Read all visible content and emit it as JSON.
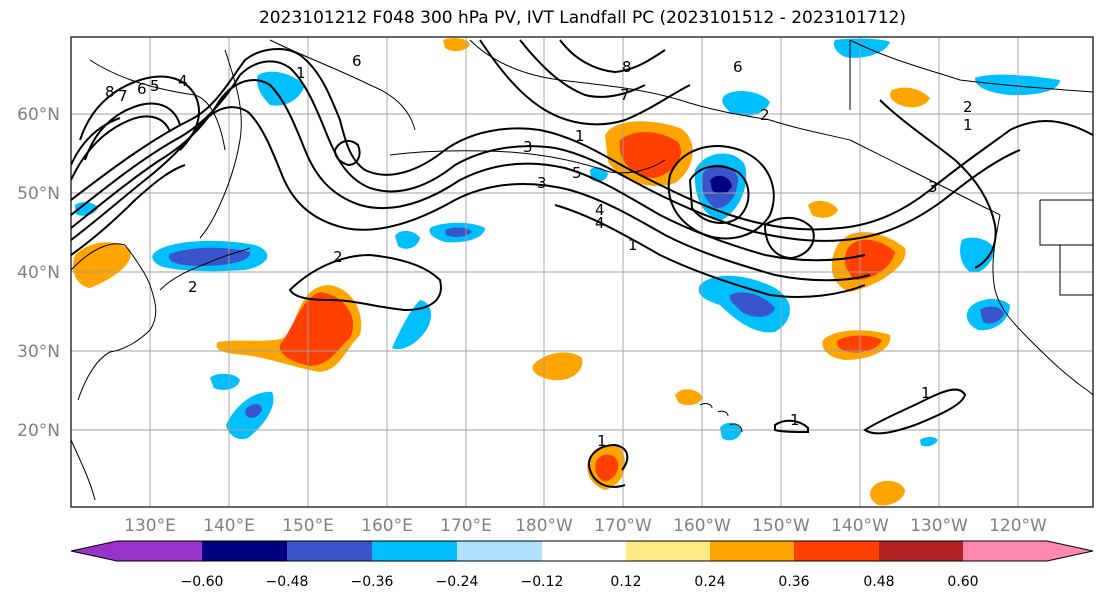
{
  "title": "2023101212 F048 300 hPa PV, IVT Landfall PC (2023101512 - 2023101712)",
  "map": {
    "lat_labels": [
      "60°N",
      "50°N",
      "40°N",
      "30°N",
      "20°N"
    ],
    "lon_labels": [
      "130°E",
      "140°E",
      "150°E",
      "160°E",
      "170°E",
      "180°W",
      "170°W",
      "160°W",
      "150°W",
      "140°W",
      "130°W",
      "120°W"
    ],
    "contour_labels": [
      "8",
      "7",
      "6",
      "5",
      "4",
      "1",
      "6",
      "8",
      "6",
      "7",
      "3",
      "4",
      "5",
      "1",
      "3",
      "4",
      "2",
      "1",
      "2",
      "2",
      "1",
      "1",
      "1",
      "1",
      "3",
      "2"
    ]
  },
  "colorbar": {
    "colors": [
      "#9933cc",
      "#000080",
      "#3a55cc",
      "#00bfff",
      "#b0e2ff",
      "#ffffff",
      "#ffea85",
      "#ffa500",
      "#ff4000",
      "#b22222",
      "#ff88b0"
    ],
    "tick_labels": [
      "−0.60",
      "−0.48",
      "−0.36",
      "−0.24",
      "−0.12",
      "0.12",
      "0.24",
      "0.36",
      "0.48",
      "0.60"
    ]
  }
}
